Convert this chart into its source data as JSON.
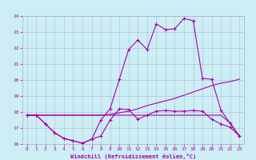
{
  "xlabel": "Windchill (Refroidissement éolien,°C)",
  "ylabel": "",
  "xlim": [
    -0.5,
    23.5
  ],
  "ylim": [
    16,
    24
  ],
  "xticks": [
    0,
    1,
    2,
    3,
    4,
    5,
    6,
    7,
    8,
    9,
    10,
    11,
    12,
    13,
    14,
    15,
    16,
    17,
    18,
    19,
    20,
    21,
    22,
    23
  ],
  "yticks": [
    16,
    17,
    18,
    19,
    20,
    21,
    22,
    23,
    24
  ],
  "bg_color": "#cceef4",
  "line_color": "#aa00aa",
  "line1_x": [
    0,
    1,
    2,
    3,
    4,
    5,
    6,
    7,
    8,
    9,
    10,
    11,
    12,
    13,
    14,
    15,
    16,
    17,
    18,
    19,
    20,
    21,
    22,
    23
  ],
  "line1_y": [
    17.8,
    17.8,
    17.25,
    16.7,
    16.35,
    16.2,
    16.05,
    16.3,
    17.5,
    18.2,
    20.05,
    21.9,
    22.5,
    21.9,
    23.5,
    23.15,
    23.2,
    23.85,
    23.7,
    20.1,
    20.05,
    18.1,
    17.3,
    16.5
  ],
  "line2_x": [
    0,
    1,
    2,
    3,
    4,
    5,
    6,
    7,
    8,
    9,
    10,
    11,
    12,
    13,
    14,
    15,
    16,
    17,
    18,
    19,
    20,
    21,
    22,
    23
  ],
  "line2_y": [
    17.8,
    17.8,
    17.25,
    16.7,
    16.35,
    16.2,
    16.05,
    16.3,
    16.5,
    17.5,
    18.2,
    18.15,
    17.55,
    17.8,
    18.05,
    18.1,
    18.05,
    18.05,
    18.1,
    18.05,
    17.55,
    17.25,
    17.05,
    16.5
  ],
  "line3_x": [
    0,
    1,
    2,
    3,
    4,
    5,
    6,
    7,
    8,
    9,
    10,
    11,
    12,
    13,
    14,
    15,
    16,
    17,
    18,
    19,
    20,
    21,
    22,
    23
  ],
  "line3_y": [
    17.8,
    17.8,
    17.8,
    17.8,
    17.8,
    17.8,
    17.8,
    17.8,
    17.8,
    17.85,
    17.95,
    18.05,
    18.2,
    18.4,
    18.55,
    18.7,
    18.85,
    19.05,
    19.25,
    19.45,
    19.65,
    19.8,
    19.9,
    20.05
  ],
  "line4_x": [
    0,
    1,
    2,
    3,
    4,
    5,
    6,
    7,
    8,
    9,
    10,
    11,
    12,
    13,
    14,
    15,
    16,
    17,
    18,
    19,
    20,
    21,
    22,
    23
  ],
  "line4_y": [
    17.8,
    17.8,
    17.8,
    17.8,
    17.8,
    17.8,
    17.8,
    17.8,
    17.8,
    17.8,
    17.8,
    17.8,
    17.8,
    17.8,
    17.8,
    17.8,
    17.8,
    17.8,
    17.8,
    17.8,
    17.8,
    17.8,
    17.3,
    16.5
  ]
}
